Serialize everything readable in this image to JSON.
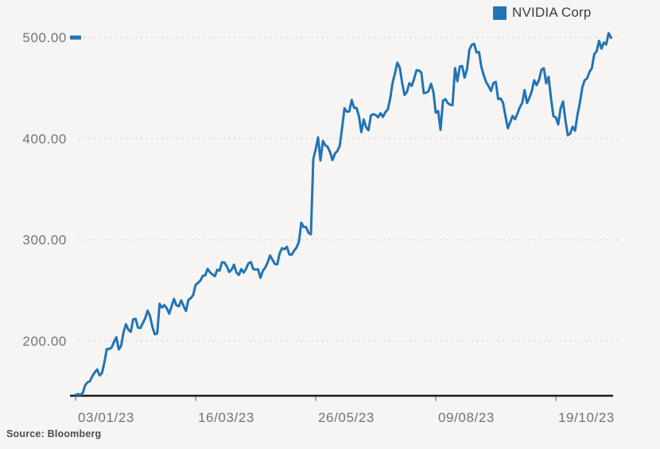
{
  "legend": {
    "label": "NVIDIA Corp",
    "swatch_color": "#2274b4"
  },
  "source": {
    "text": "Source: Bloomberg"
  },
  "colors": {
    "background": "#f6f5f3",
    "series_line": "#2274b4",
    "axis_line": "#1b1b1b",
    "tick_label": "#73736f",
    "gridline": "#d6d3cf"
  },
  "chart_data": {
    "type": "line",
    "title": "",
    "xlabel": "",
    "ylabel": "",
    "legend_position": "top-right",
    "grid": "horizontal-dotted",
    "frequency": "daily closes, Jan 3 2023 to Nov 21 2023",
    "ylim": [
      143,
      512
    ],
    "y_ticks": [
      {
        "value": 500,
        "label": "500.00"
      },
      {
        "value": 400,
        "label": "400.00"
      },
      {
        "value": 300,
        "label": "300.00"
      },
      {
        "value": 200,
        "label": "200.00"
      }
    ],
    "x_ticks": [
      {
        "index": 0,
        "label": "03/01/23"
      },
      {
        "index": 50,
        "label": "16/03/23"
      },
      {
        "index": 100,
        "label": "26/05/23"
      },
      {
        "index": 150,
        "label": "09/08/23"
      },
      {
        "index": 200,
        "label": "19/10/23"
      }
    ],
    "last_level_marker": {
      "value": 500
    },
    "series": [
      {
        "name": "NVIDIA Corp",
        "color": "#2274b4",
        "values": [
          143.15,
          147.49,
          142.65,
          148.59,
          156.28,
          159.1,
          160.07,
          165.11,
          168.99,
          171.77,
          165.94,
          168.23,
          178.39,
          191.93,
          192.1,
          193.43,
          199.0,
          203.65,
          191.6,
          195.37,
          208.87,
          216.43,
          211.22,
          209.07,
          221.33,
          221.87,
          213.22,
          212.65,
          217.56,
          222.34,
          229.95,
          224.74,
          213.88,
          206.55,
          207.54,
          236.64,
          232.88,
          235.45,
          232.16,
          226.95,
          234.27,
          241.44,
          235.26,
          234.22,
          240.09,
          234.47,
          229.62,
          240.61,
          242.35,
          245.48,
          255.41,
          257.25,
          259.67,
          264.4,
          264.68,
          271.22,
          267.79,
          265.71,
          263.9,
          270.37,
          269.55,
          277.77,
          277.49,
          273.6,
          268.07,
          270.47,
          275.42,
          267.63,
          265.22,
          271.01,
          267.58,
          271.22,
          276.67,
          277.89,
          271.09,
          270.46,
          270.84,
          262.41,
          269.27,
          272.59,
          277.49,
          284.4,
          280.35,
          276.07,
          275.61,
          286.61,
          291.61,
          290.58,
          292.99,
          285.54,
          285.19,
          289.1,
          292.13,
          298.02,
          316.78,
          312.64,
          312.6,
          306.89,
          305.38,
          379.8,
          389.46,
          401.11,
          378.34,
          397.7,
          393.27,
          391.71,
          386.54,
          378.72,
          385.1,
          387.7,
          392.57,
          410.22,
          429.97,
          426.53,
          426.92,
          438.08,
          430.45,
          430.26,
          422.09,
          406.32,
          418.76,
          411.17,
          408.22,
          423.02,
          424.13,
          423.17,
          421.03,
          425.03,
          421.36,
          426.0,
          428.5,
          439.02,
          454.69,
          464.61,
          474.94,
          470.25,
          455.2,
          443.09,
          446.12,
          454.78,
          452.1,
          459.0,
          467.5,
          467.29,
          465.07,
          444.97,
          445.24,
          446.64,
          454.17,
          446.27,
          425.54,
          427.09,
          408.55,
          437.53,
          439.0,
          434.99,
          433.44,
          432.99,
          469.67,
          456.68,
          471.16,
          471.63,
          460.18,
          468.35,
          487.84,
          492.64,
          493.55,
          485.09,
          485.48,
          470.61,
          462.41,
          455.72,
          451.78,
          447.02,
          454.85,
          455.97,
          439.0,
          439.66,
          435.2,
          422.39,
          410.17,
          416.1,
          422.22,
          419.05,
          424.68,
          430.89,
          434.99,
          447.82,
          435.17,
          440.41,
          446.88,
          457.62,
          452.73,
          457.99,
          468.06,
          469.45,
          454.61,
          460.95,
          439.38,
          421.96,
          421.01,
          413.87,
          429.75,
          436.63,
          417.79,
          403.26,
          405.0,
          411.61,
          407.8,
          423.25,
          435.06,
          450.05,
          457.51,
          459.55,
          465.74,
          469.5,
          483.35,
          486.2,
          496.56,
          488.88,
          494.8,
          492.98,
          504.09,
          499.44
        ]
      }
    ]
  }
}
